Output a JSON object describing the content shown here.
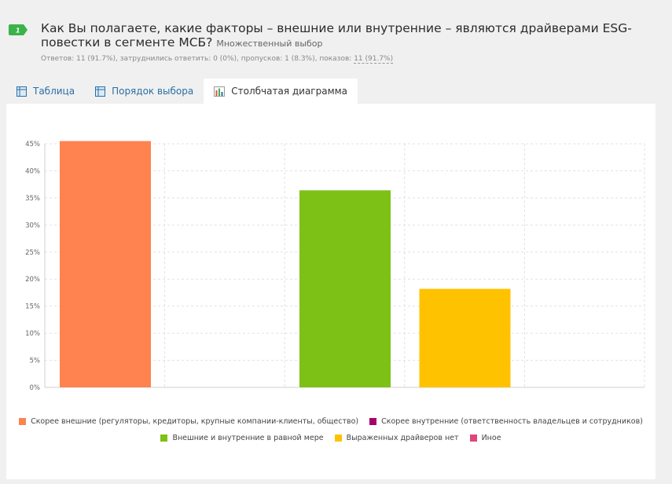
{
  "question": {
    "number": "1",
    "title": "Как Вы полагаете, какие факторы – внешние или внутренние – являются драйверами ESG-повестки в сегменте МСБ?",
    "type": "Множественный выбор",
    "stats_prefix": "Ответов: 11 (91.7%), затруднились ответить: 0 (0%), пропусков: 1 (8.3%), показов: ",
    "stats_shows": "11 (91.7%)",
    "badge_color": "#3bb34a"
  },
  "tabs": [
    {
      "label": "Таблица",
      "icon": "table-icon"
    },
    {
      "label": "Порядок выбора",
      "icon": "table-icon"
    },
    {
      "label": "Столбчатая диаграмма",
      "icon": "bar-chart-icon",
      "active": true
    }
  ],
  "chart_data": {
    "type": "bar",
    "categories": [
      "Скорее внешние (регуляторы, кредиторы, крупные компании-клиенты, общество)",
      "Скорее внутренние (ответственность владельцев и сотрудников)",
      "Внешние и внутренние в равной мере",
      "Выраженных драйверов нет",
      "Иное"
    ],
    "values": [
      45.5,
      0,
      36.4,
      18.2,
      0
    ],
    "colors": [
      "#ff8251",
      "#a8006b",
      "#7dc116",
      "#ffc200",
      "#e0457b"
    ],
    "ylim": [
      0,
      45
    ],
    "yticks": [
      "0%",
      "5%",
      "10%",
      "15%",
      "20%",
      "25%",
      "30%",
      "35%",
      "40%",
      "45%"
    ],
    "grid": true,
    "legend_position": "bottom"
  }
}
